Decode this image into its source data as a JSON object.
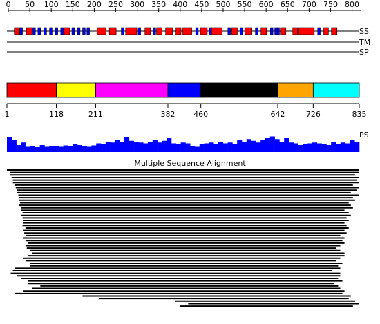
{
  "top_axis": {
    "xlim": [
      0,
      820
    ],
    "ticks": [
      0,
      50,
      100,
      150,
      200,
      250,
      300,
      350,
      400,
      450,
      500,
      550,
      600,
      650,
      700,
      750,
      800
    ]
  },
  "tracks": {
    "ss": "SS",
    "tm": "TM",
    "sp": "SP"
  },
  "ss": [
    {
      "color": "#ff0000",
      "ranges": [
        [
          14,
          26
        ],
        [
          42,
          55
        ],
        [
          130,
          143
        ],
        [
          207,
          227
        ],
        [
          235,
          251
        ],
        [
          273,
          299
        ],
        [
          318,
          331
        ],
        [
          345,
          358
        ],
        [
          366,
          382
        ],
        [
          390,
          402
        ],
        [
          406,
          427
        ],
        [
          447,
          463
        ],
        [
          472,
          498
        ],
        [
          520,
          533
        ],
        [
          551,
          567
        ],
        [
          588,
          601
        ],
        [
          633,
          646
        ],
        [
          662,
          673
        ],
        [
          676,
          712
        ],
        [
          734,
          745
        ],
        [
          752,
          765
        ]
      ]
    },
    {
      "color": "#0000ff",
      "ranges": [
        [
          27,
          33
        ],
        [
          57,
          63
        ],
        [
          69,
          75
        ],
        [
          83,
          89
        ],
        [
          96,
          102
        ],
        [
          109,
          115
        ],
        [
          122,
          128
        ],
        [
          148,
          154
        ],
        [
          161,
          167
        ],
        [
          173,
          179
        ],
        [
          183,
          189
        ],
        [
          263,
          269
        ],
        [
          302,
          308
        ],
        [
          337,
          343
        ],
        [
          436,
          442
        ],
        [
          467,
          473
        ],
        [
          511,
          517
        ],
        [
          539,
          545
        ],
        [
          575,
          581
        ],
        [
          610,
          616
        ],
        [
          620,
          626
        ],
        [
          626,
          631
        ],
        [
          720,
          726
        ]
      ]
    }
  ],
  "domains": {
    "xlim": [
      1,
      835
    ],
    "segments": [
      {
        "start": 1,
        "end": 118,
        "color": "#ff0000"
      },
      {
        "start": 118,
        "end": 211,
        "color": "#ffff00"
      },
      {
        "start": 211,
        "end": 382,
        "color": "#ff00ff"
      },
      {
        "start": 382,
        "end": 460,
        "color": "#0000ff"
      },
      {
        "start": 460,
        "end": 642,
        "color": "#000000"
      },
      {
        "start": 642,
        "end": 726,
        "color": "#ffa500"
      },
      {
        "start": 726,
        "end": 835,
        "color": "#00ffff"
      }
    ],
    "ticks": [
      1,
      118,
      211,
      382,
      460,
      642,
      726,
      835
    ]
  },
  "ps": {
    "label": "PS",
    "ylim": [
      0,
      1
    ],
    "color": "#0000ff",
    "values": [
      0.85,
      0.7,
      0.4,
      0.55,
      0.3,
      0.35,
      0.28,
      0.4,
      0.3,
      0.35,
      0.32,
      0.3,
      0.38,
      0.35,
      0.45,
      0.4,
      0.35,
      0.3,
      0.38,
      0.5,
      0.45,
      0.6,
      0.55,
      0.7,
      0.6,
      0.85,
      0.65,
      0.6,
      0.55,
      0.5,
      0.6,
      0.7,
      0.55,
      0.65,
      0.8,
      0.5,
      0.45,
      0.55,
      0.5,
      0.35,
      0.3,
      0.45,
      0.5,
      0.55,
      0.45,
      0.6,
      0.5,
      0.55,
      0.45,
      0.7,
      0.6,
      0.75,
      0.65,
      0.55,
      0.7,
      0.8,
      0.9,
      0.75,
      0.6,
      0.8,
      0.55,
      0.5,
      0.4,
      0.45,
      0.5,
      0.55,
      0.5,
      0.45,
      0.4,
      0.6,
      0.45,
      0.55,
      0.5,
      0.7,
      0.6
    ]
  },
  "msa": {
    "title": "Multiple Sequence Alignment",
    "rows": [
      [
        1,
        835
      ],
      [
        8,
        835
      ],
      [
        8,
        825
      ],
      [
        12,
        835
      ],
      [
        15,
        830
      ],
      [
        15,
        835
      ],
      [
        20,
        820
      ],
      [
        22,
        835
      ],
      [
        25,
        830
      ],
      [
        25,
        815
      ],
      [
        28,
        835
      ],
      [
        30,
        820
      ],
      [
        30,
        825
      ],
      [
        32,
        810
      ],
      [
        30,
        815
      ],
      [
        35,
        820
      ],
      [
        35,
        800
      ],
      [
        38,
        810
      ],
      [
        35,
        815
      ],
      [
        38,
        805
      ],
      [
        40,
        810
      ],
      [
        40,
        800
      ],
      [
        38,
        805
      ],
      [
        45,
        810
      ],
      [
        40,
        800
      ],
      [
        42,
        805
      ],
      [
        45,
        790
      ],
      [
        40,
        800
      ],
      [
        45,
        795
      ],
      [
        50,
        800
      ],
      [
        45,
        790
      ],
      [
        48,
        780
      ],
      [
        55,
        790
      ],
      [
        60,
        800
      ],
      [
        50,
        800
      ],
      [
        40,
        790
      ],
      [
        45,
        780
      ],
      [
        55,
        795
      ],
      [
        55,
        785
      ],
      [
        20,
        790
      ],
      [
        15,
        770
      ],
      [
        10,
        790
      ],
      [
        25,
        790
      ],
      [
        35,
        785
      ],
      [
        50,
        795
      ],
      [
        50,
        775
      ],
      [
        80,
        785
      ],
      [
        60,
        790
      ],
      [
        40,
        800
      ],
      [
        20,
        795
      ],
      [
        180,
        815
      ],
      [
        220,
        810
      ],
      [
        400,
        825
      ],
      [
        430,
        835
      ],
      [
        410,
        820
      ]
    ]
  }
}
